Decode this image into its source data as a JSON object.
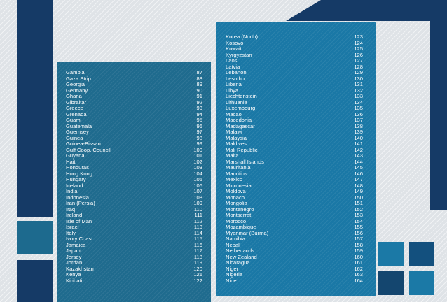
{
  "colors": {
    "background": "#dfe3e7",
    "navy": "#153a66",
    "teal_panel": "#1f6b8e",
    "blue_panel": "#1a78a6"
  },
  "left_list": [
    {
      "country": "Gambia",
      "num": "87"
    },
    {
      "country": "Gaza Strip",
      "num": "88"
    },
    {
      "country": "Georgia",
      "num": "89"
    },
    {
      "country": "Germany",
      "num": "90"
    },
    {
      "country": "Ghana",
      "num": "91"
    },
    {
      "country": "Gibraltar",
      "num": "92"
    },
    {
      "country": "Greece",
      "num": "93"
    },
    {
      "country": "Grenada",
      "num": "94"
    },
    {
      "country": "Guam",
      "num": "95"
    },
    {
      "country": "Guatemala",
      "num": "96"
    },
    {
      "country": "Guernsey",
      "num": "97"
    },
    {
      "country": "Guinea",
      "num": "98"
    },
    {
      "country": "Guinea-Bissau",
      "num": "99"
    },
    {
      "country": "Gulf Coop. Council",
      "num": "100"
    },
    {
      "country": "Guyana",
      "num": "101"
    },
    {
      "country": "Haiti",
      "num": "102"
    },
    {
      "country": "Honduras",
      "num": "103"
    },
    {
      "country": "Hong Kong",
      "num": "104"
    },
    {
      "country": "Hungary",
      "num": "105"
    },
    {
      "country": "Iceland",
      "num": "106"
    },
    {
      "country": "India",
      "num": "107"
    },
    {
      "country": "Indonesia",
      "num": "108"
    },
    {
      "country": "Iran (Persia)",
      "num": "109"
    },
    {
      "country": "Iraq",
      "num": "110"
    },
    {
      "country": "Ireland",
      "num": "111"
    },
    {
      "country": "Isle of Man",
      "num": "112"
    },
    {
      "country": "Israel",
      "num": "113"
    },
    {
      "country": "Italy",
      "num": "114"
    },
    {
      "country": "Ivory Coast",
      "num": "115"
    },
    {
      "country": "Jamaica",
      "num": "116"
    },
    {
      "country": "Japan",
      "num": "117"
    },
    {
      "country": "Jersey",
      "num": "118"
    },
    {
      "country": "Jordan",
      "num": "119"
    },
    {
      "country": "Kazakhstan",
      "num": "120"
    },
    {
      "country": "Kenya",
      "num": "121"
    },
    {
      "country": "Kiribati",
      "num": "122"
    }
  ],
  "right_list": [
    {
      "country": "Korea (North)",
      "num": "123"
    },
    {
      "country": "Kosovo",
      "num": "124"
    },
    {
      "country": "Kuwait",
      "num": "125"
    },
    {
      "country": "Kyrgyzstan",
      "num": "126"
    },
    {
      "country": "Laos",
      "num": "127"
    },
    {
      "country": "Latvia",
      "num": "128"
    },
    {
      "country": "Lebanon",
      "num": "129"
    },
    {
      "country": "Lesotho",
      "num": "130"
    },
    {
      "country": "Liberia",
      "num": "131"
    },
    {
      "country": "Libya",
      "num": "132"
    },
    {
      "country": "Liechtenstein",
      "num": "133"
    },
    {
      "country": "Lithuania",
      "num": "134"
    },
    {
      "country": "Luxembourg",
      "num": "135"
    },
    {
      "country": "Macao",
      "num": "136"
    },
    {
      "country": "Macedonia",
      "num": "137"
    },
    {
      "country": "Madagascar",
      "num": "138"
    },
    {
      "country": "Malawi",
      "num": "139"
    },
    {
      "country": "Malaysia",
      "num": "140"
    },
    {
      "country": "Maldives",
      "num": "141"
    },
    {
      "country": "Mali Republic",
      "num": "142"
    },
    {
      "country": "Malta",
      "num": "143"
    },
    {
      "country": "Marshall Islands",
      "num": "144"
    },
    {
      "country": "Mauritania",
      "num": "145"
    },
    {
      "country": "Mauritius",
      "num": "146"
    },
    {
      "country": "Mexico",
      "num": "147"
    },
    {
      "country": "Micronesia",
      "num": "148"
    },
    {
      "country": "Moldova",
      "num": "149"
    },
    {
      "country": "Monaco",
      "num": "150"
    },
    {
      "country": "Mongolia",
      "num": "151"
    },
    {
      "country": "Montenegro",
      "num": "152"
    },
    {
      "country": "Montserrat",
      "num": "153"
    },
    {
      "country": "Morocco",
      "num": "154"
    },
    {
      "country": "Mozambique",
      "num": "155"
    },
    {
      "country": "Myanmar (Burma)",
      "num": "156"
    },
    {
      "country": "Namibia",
      "num": "157"
    },
    {
      "country": "Nepal",
      "num": "158"
    },
    {
      "country": "Netherlands",
      "num": "159"
    },
    {
      "country": "New Zealand",
      "num": "160"
    },
    {
      "country": "Nicaragua",
      "num": "161"
    },
    {
      "country": "Niger",
      "num": "162"
    },
    {
      "country": "Nigeria",
      "num": "163"
    },
    {
      "country": "Niue",
      "num": "164"
    }
  ]
}
